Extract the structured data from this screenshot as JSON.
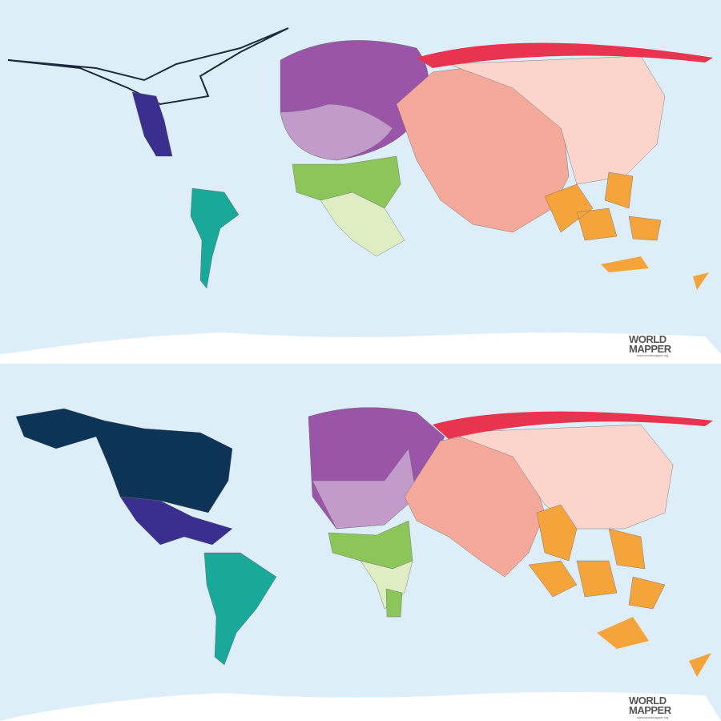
{
  "panels": [
    {
      "logo": {
        "line1": "WORLD",
        "line2": "MAPPER",
        "url": "www.worldmapper.org"
      }
    },
    {
      "logo": {
        "line1": "WORLD",
        "line2": "MAPPER",
        "url": "www.worldmapper.org"
      }
    }
  ]
}
